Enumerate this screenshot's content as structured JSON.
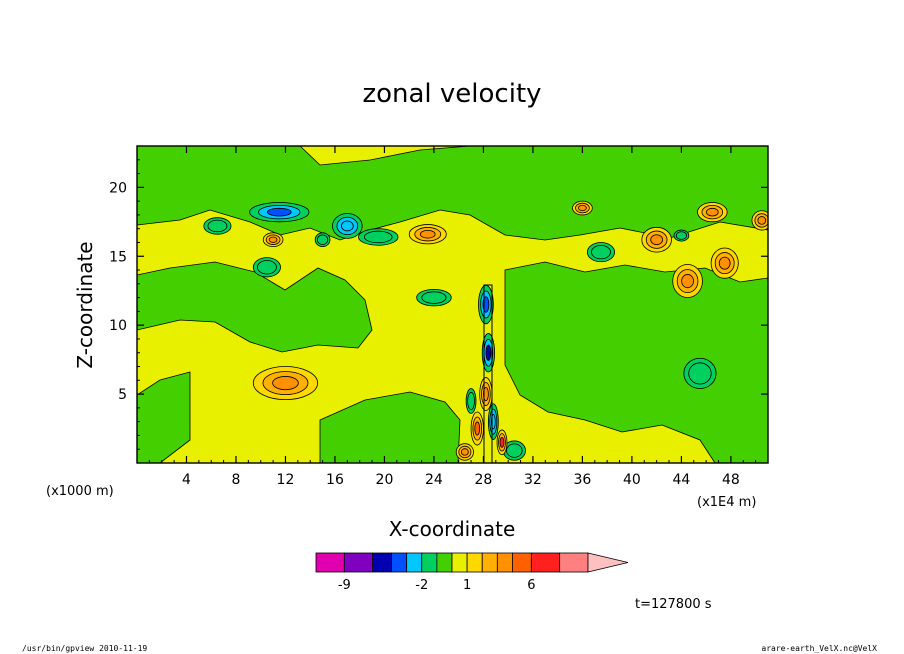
{
  "chart_data": {
    "type": "heatmap",
    "title": "zonal velocity",
    "xlabel": "X-coordinate",
    "ylabel": "Z-coordinate",
    "x_unit": "(x1E4 m)",
    "y_unit": "(x1000 m)",
    "xlim": [
      0,
      51
    ],
    "ylim": [
      0,
      23
    ],
    "x_ticks": [
      "4",
      "8",
      "12",
      "16",
      "20",
      "24",
      "28",
      "32",
      "36",
      "40",
      "44",
      "48"
    ],
    "x_tick_values": [
      4,
      8,
      12,
      16,
      20,
      24,
      28,
      32,
      36,
      40,
      44,
      48
    ],
    "y_ticks": [
      "5",
      "10",
      "15",
      "20"
    ],
    "y_tick_values": [
      5,
      10,
      15,
      20
    ],
    "colorbar": {
      "levels": [
        -12,
        -9,
        -6,
        -4,
        -3,
        -2,
        -1,
        0,
        1,
        2,
        3,
        4,
        6,
        9,
        12
      ],
      "colors": [
        "#e000b0",
        "#8000c0",
        "#0000b0",
        "#0050ff",
        "#00c8ff",
        "#00d060",
        "#44d000",
        "#e8f000",
        "#ffd800",
        "#ffb000",
        "#ff9000",
        "#ff6000",
        "#ff2020",
        "#ff8080",
        "#ffc0c0"
      ],
      "labels": [
        "-9",
        "-2",
        "1",
        "6"
      ],
      "label_values": [
        -9,
        -2,
        1,
        6
      ]
    },
    "blobs": [
      {
        "x": 11.5,
        "z": 18.2,
        "rx": 2.4,
        "rz": 0.7,
        "v": -4
      },
      {
        "x": 17,
        "z": 17.2,
        "rx": 1.2,
        "rz": 0.9,
        "v": -3
      },
      {
        "x": 15,
        "z": 16.2,
        "rx": 0.6,
        "rz": 0.5,
        "v": -2
      },
      {
        "x": 6.5,
        "z": 17.2,
        "rx": 1.1,
        "rz": 0.6,
        "v": -2
      },
      {
        "x": 19.5,
        "z": 16.4,
        "rx": 1.6,
        "rz": 0.6,
        "v": -2
      },
      {
        "x": 10.5,
        "z": 14.2,
        "rx": 1.1,
        "rz": 0.7,
        "v": -2
      },
      {
        "x": 24,
        "z": 12,
        "rx": 1.4,
        "rz": 0.6,
        "v": -2
      },
      {
        "x": 37.5,
        "z": 15.3,
        "rx": 1.1,
        "rz": 0.7,
        "v": -2
      },
      {
        "x": 45.5,
        "z": 6.5,
        "rx": 1.3,
        "rz": 1.1,
        "v": -2
      },
      {
        "x": 44,
        "z": 16.5,
        "rx": 0.6,
        "rz": 0.4,
        "v": -2
      },
      {
        "x": 30.5,
        "z": 0.9,
        "rx": 0.9,
        "rz": 0.7,
        "v": -2
      },
      {
        "x": 12,
        "z": 5.8,
        "rx": 2.6,
        "rz": 1.2,
        "v": 3
      },
      {
        "x": 23.5,
        "z": 16.6,
        "rx": 1.5,
        "rz": 0.7,
        "v": 3
      },
      {
        "x": 11,
        "z": 16.2,
        "rx": 0.8,
        "rz": 0.5,
        "v": 3
      },
      {
        "x": 44.5,
        "z": 13.2,
        "rx": 1.2,
        "rz": 1.2,
        "v": 3
      },
      {
        "x": 47.5,
        "z": 14.5,
        "rx": 1.1,
        "rz": 1.1,
        "v": 3
      },
      {
        "x": 36,
        "z": 18.5,
        "rx": 0.8,
        "rz": 0.5,
        "v": 3
      },
      {
        "x": 42,
        "z": 16.2,
        "rx": 1.2,
        "rz": 0.9,
        "v": 3
      },
      {
        "x": 46.5,
        "z": 18.2,
        "rx": 1.2,
        "rz": 0.7,
        "v": 3
      },
      {
        "x": 50.5,
        "z": 17.6,
        "rx": 0.8,
        "rz": 0.7,
        "v": 3
      },
      {
        "x": 26.5,
        "z": 0.8,
        "rx": 0.7,
        "rz": 0.6,
        "v": 3
      }
    ],
    "core": [
      {
        "x": 28.2,
        "z": 11.5,
        "rx": 0.6,
        "rz": 1.4,
        "v": -4
      },
      {
        "x": 28.4,
        "z": 8,
        "rx": 0.5,
        "rz": 1.4,
        "v": -6
      },
      {
        "x": 28.2,
        "z": 5,
        "rx": 0.5,
        "rz": 1.2,
        "v": 3
      },
      {
        "x": 27.5,
        "z": 2.5,
        "rx": 0.5,
        "rz": 1.2,
        "v": 4
      },
      {
        "x": 28.8,
        "z": 3,
        "rx": 0.4,
        "rz": 1.3,
        "v": -3
      },
      {
        "x": 29.5,
        "z": 1.5,
        "rx": 0.4,
        "rz": 0.9,
        "v": 6
      },
      {
        "x": 27,
        "z": 4.5,
        "rx": 0.4,
        "rz": 0.9,
        "v": -2
      }
    ]
  },
  "info": {
    "time": "t=127800 s",
    "footer_left": "/usr/bin/gpview  2010-11-19",
    "footer_right": "arare-earth_VelX.nc@VelX"
  }
}
